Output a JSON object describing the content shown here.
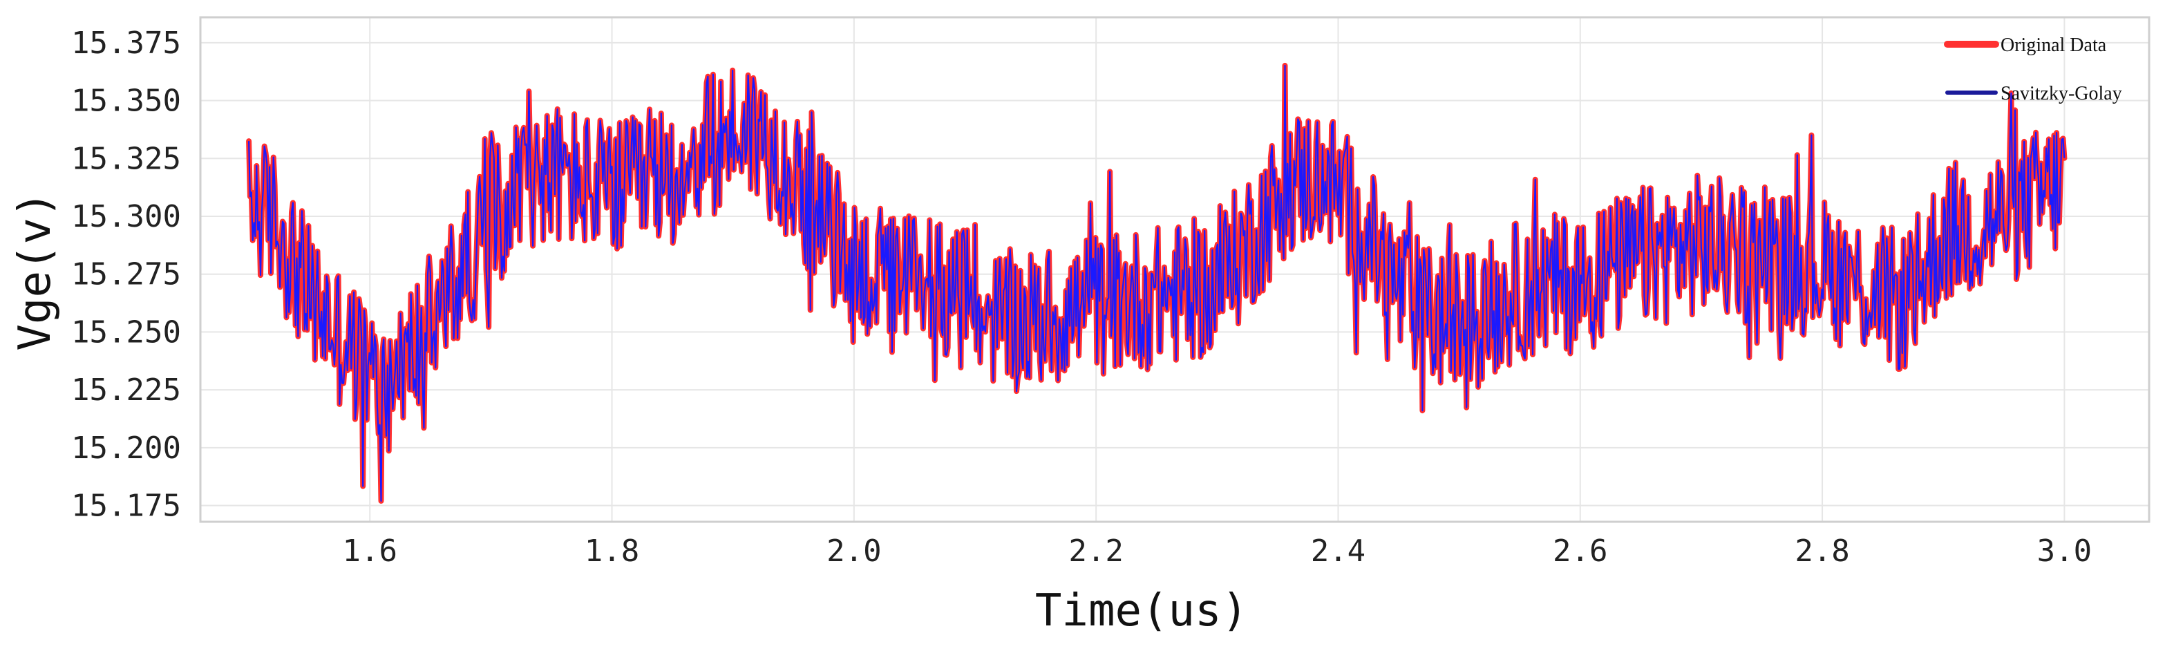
{
  "chart_data": {
    "type": "line",
    "xlabel": "Time(us)",
    "ylabel": "Vge(v)",
    "xlim": [
      1.46,
      3.07
    ],
    "ylim": [
      15.168,
      15.386
    ],
    "xticks": [
      "1.6",
      "1.8",
      "2.0",
      "2.2",
      "2.4",
      "2.6",
      "2.8",
      "3.0"
    ],
    "yticks": [
      "15.375",
      "15.350",
      "15.325",
      "15.300",
      "15.275",
      "15.250",
      "15.225",
      "15.200",
      "15.175"
    ],
    "grid": true,
    "legend_position": "top-right",
    "series": [
      {
        "name": "Original Data",
        "color": "#ff3030",
        "x_range": [
          1.5,
          3.0
        ],
        "trend": [
          [
            1.5,
            15.305
          ],
          [
            1.52,
            15.3
          ],
          [
            1.55,
            15.265
          ],
          [
            1.58,
            15.245
          ],
          [
            1.61,
            15.225
          ],
          [
            1.64,
            15.245
          ],
          [
            1.67,
            15.27
          ],
          [
            1.7,
            15.3
          ],
          [
            1.73,
            15.318
          ],
          [
            1.76,
            15.318
          ],
          [
            1.8,
            15.31
          ],
          [
            1.84,
            15.315
          ],
          [
            1.88,
            15.33
          ],
          [
            1.91,
            15.34
          ],
          [
            1.94,
            15.325
          ],
          [
            1.97,
            15.3
          ],
          [
            2.0,
            15.28
          ],
          [
            2.03,
            15.27
          ],
          [
            2.06,
            15.275
          ],
          [
            2.09,
            15.265
          ],
          [
            2.12,
            15.255
          ],
          [
            2.15,
            15.255
          ],
          [
            2.2,
            15.262
          ],
          [
            2.25,
            15.265
          ],
          [
            2.3,
            15.27
          ],
          [
            2.33,
            15.292
          ],
          [
            2.36,
            15.315
          ],
          [
            2.39,
            15.318
          ],
          [
            2.42,
            15.295
          ],
          [
            2.45,
            15.268
          ],
          [
            2.48,
            15.255
          ],
          [
            2.51,
            15.255
          ],
          [
            2.55,
            15.268
          ],
          [
            2.6,
            15.272
          ],
          [
            2.65,
            15.282
          ],
          [
            2.7,
            15.288
          ],
          [
            2.75,
            15.282
          ],
          [
            2.8,
            15.278
          ],
          [
            2.84,
            15.268
          ],
          [
            2.87,
            15.262
          ],
          [
            2.9,
            15.292
          ],
          [
            2.94,
            15.298
          ],
          [
            2.97,
            15.305
          ],
          [
            3.0,
            15.315
          ]
        ]
      },
      {
        "name": "Savitzky-Golay",
        "color": "#1a1aff"
      }
    ]
  }
}
